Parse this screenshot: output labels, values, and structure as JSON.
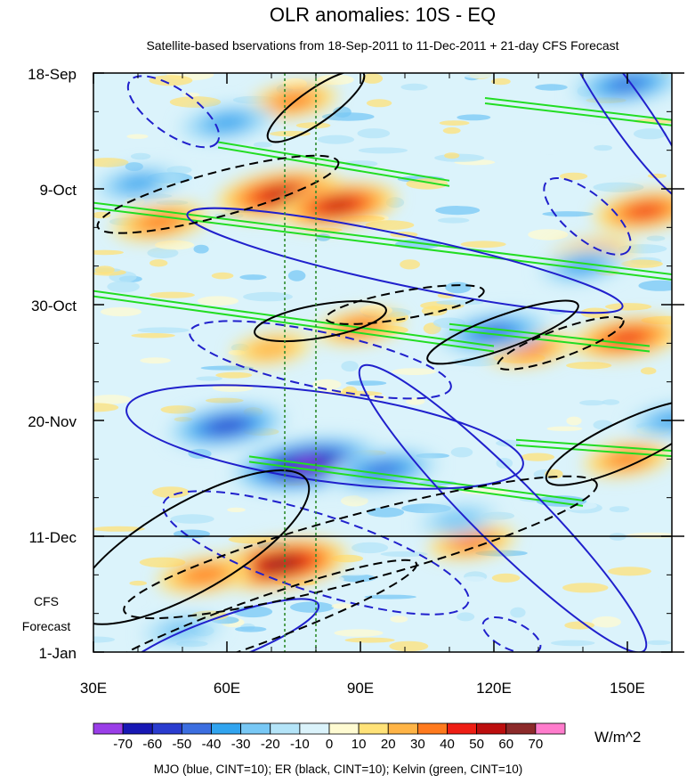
{
  "chart_data": {
    "type": "heatmap",
    "title": "OLR anomalies: 10S - EQ",
    "subtitle": "Satellite-based bservations from 18-Sep-2011 to 11-Dec-2011 + 21-day CFS Forecast",
    "x_axis": {
      "range": [
        30,
        160
      ],
      "ticks": [
        {
          "value": 30,
          "label": "30E"
        },
        {
          "value": 60,
          "label": "60E"
        },
        {
          "value": 90,
          "label": "90E"
        },
        {
          "value": 120,
          "label": "120E"
        },
        {
          "value": 150,
          "label": "150E"
        }
      ]
    },
    "y_axis": {
      "range": [
        "2011-09-18",
        "2012-01-01"
      ],
      "ticks": [
        {
          "date": "2011-09-18",
          "label": "18-Sep"
        },
        {
          "date": "2011-10-09",
          "label": "9-Oct"
        },
        {
          "date": "2011-10-30",
          "label": "30-Oct"
        },
        {
          "date": "2011-11-20",
          "label": "20-Nov"
        },
        {
          "date": "2011-12-11",
          "label": "11-Dec"
        },
        {
          "date": "2012-01-01",
          "label": "1-Jan"
        }
      ],
      "forecast_label": [
        "CFS",
        "Forecast"
      ]
    },
    "observation_end": "2011-12-11",
    "colorbar": {
      "unit": "W/m^2",
      "labels": [
        "-70",
        "-60",
        "-50",
        "-40",
        "-30",
        "-20",
        "-10",
        "0",
        "10",
        "20",
        "30",
        "40",
        "50",
        "60",
        "70"
      ],
      "colors": [
        "#9a3ee8",
        "#1818b4",
        "#2a3ccf",
        "#3c6ee0",
        "#31a4ef",
        "#78c8f5",
        "#b4e4f8",
        "#dbf3fb",
        "#fffbd2",
        "#ffe278",
        "#ffb446",
        "#ff7a1e",
        "#ee1e14",
        "#bc0e0e",
        "#8c2a2a",
        "#ff7ccc"
      ]
    },
    "footnote": "MJO (blue, CINT=10); ER (black, CINT=10); Kelvin (green, CINT=10)",
    "reference_lines_lon": [
      73,
      80
    ],
    "anomaly_blobs": [
      {
        "lon": 75,
        "date": "2011-09-23",
        "value": 30
      },
      {
        "lon": 72,
        "date": "2011-10-10",
        "value": 55
      },
      {
        "lon": 85,
        "date": "2011-10-12",
        "value": 50
      },
      {
        "lon": 45,
        "date": "2011-10-15",
        "value": 35
      },
      {
        "lon": 154,
        "date": "2011-10-13",
        "value": 40
      },
      {
        "lon": 142,
        "date": "2011-10-21",
        "value": 30
      },
      {
        "lon": 90,
        "date": "2011-11-03",
        "value": 30
      },
      {
        "lon": 70,
        "date": "2011-11-07",
        "value": 25
      },
      {
        "lon": 128,
        "date": "2011-11-07",
        "value": 30
      },
      {
        "lon": 150,
        "date": "2011-11-05",
        "value": 45
      },
      {
        "lon": 150,
        "date": "2011-11-27",
        "value": 30
      },
      {
        "lon": 72,
        "date": "2011-12-16",
        "value": 60
      },
      {
        "lon": 55,
        "date": "2011-12-18",
        "value": 35
      },
      {
        "lon": 115,
        "date": "2011-12-12",
        "value": 30
      },
      {
        "lon": 60,
        "date": "2011-09-27",
        "value": -35
      },
      {
        "lon": 40,
        "date": "2011-10-08",
        "value": -30
      },
      {
        "lon": 60,
        "date": "2011-11-21",
        "value": -50
      },
      {
        "lon": 78,
        "date": "2011-11-28",
        "value": -70
      },
      {
        "lon": 95,
        "date": "2011-11-29",
        "value": -45
      },
      {
        "lon": 120,
        "date": "2011-11-04",
        "value": -45
      },
      {
        "lon": 140,
        "date": "2011-10-23",
        "value": -30
      },
      {
        "lon": 150,
        "date": "2011-09-20",
        "value": -45
      },
      {
        "lon": 160,
        "date": "2011-11-20",
        "value": -30
      },
      {
        "lon": 112,
        "date": "2011-12-08",
        "value": -25
      },
      {
        "lon": 50,
        "date": "2011-12-28",
        "value": -25
      }
    ],
    "mjo_contours": [
      {
        "sign": "neg",
        "lon": 48,
        "date": "2011-09-25",
        "rlon": 12,
        "rdays": 4,
        "angle": 35
      },
      {
        "sign": "pos",
        "lon": 100,
        "date": "2011-10-22",
        "rlon": 50,
        "rdays": 4.5,
        "angle": 12
      },
      {
        "sign": "pos",
        "lon": 150,
        "date": "2011-09-25",
        "rlon": 25,
        "rdays": 3.5,
        "angle": 55
      },
      {
        "sign": "neg",
        "lon": 141,
        "date": "2011-10-14",
        "rlon": 12,
        "rdays": 4,
        "angle": 40
      },
      {
        "sign": "neg",
        "lon": 81,
        "date": "2011-11-09",
        "rlon": 30,
        "rdays": 5,
        "angle": 12
      },
      {
        "sign": "pos",
        "lon": 82,
        "date": "2011-11-23",
        "rlon": 45,
        "rdays": 8,
        "angle": 8
      },
      {
        "sign": "pos",
        "lon": 122,
        "date": "2011-12-06",
        "rlon": 45,
        "rdays": 6,
        "angle": 45
      },
      {
        "sign": "neg",
        "lon": 80,
        "date": "2011-12-14",
        "rlon": 36,
        "rdays": 7,
        "angle": 18
      },
      {
        "sign": "pos",
        "lon": 58,
        "date": "2011-12-30",
        "rlon": 24,
        "rdays": 4,
        "angle": -20
      },
      {
        "sign": "neg",
        "lon": 124,
        "date": "2011-12-29",
        "rlon": 7,
        "rdays": 2.5,
        "angle": 25
      }
    ],
    "er_contours": [
      {
        "sign": "pos",
        "lon": 80,
        "date": "2011-09-24",
        "rlon": 13,
        "rdays": 3,
        "angle": -35
      },
      {
        "sign": "neg",
        "lon": 58,
        "date": "2011-10-10",
        "rlon": 28,
        "rdays": 4,
        "angle": -15
      },
      {
        "sign": "neg",
        "lon": 100,
        "date": "2011-10-30",
        "rlon": 18,
        "rdays": 2.5,
        "angle": -10
      },
      {
        "sign": "pos",
        "lon": 81,
        "date": "2011-11-02",
        "rlon": 15,
        "rdays": 3,
        "angle": -10
      },
      {
        "sign": "pos",
        "lon": 122,
        "date": "2011-11-04",
        "rlon": 18,
        "rdays": 3,
        "angle": -20
      },
      {
        "sign": "neg",
        "lon": 135,
        "date": "2011-11-06",
        "rlon": 15,
        "rdays": 2.5,
        "angle": -20
      },
      {
        "sign": "neg",
        "lon": 90,
        "date": "2011-12-13",
        "rlon": 55,
        "rdays": 6,
        "angle": -15
      },
      {
        "sign": "pos",
        "lon": 52,
        "date": "2011-12-13",
        "rlon": 30,
        "rdays": 8,
        "angle": -30
      },
      {
        "sign": "neg",
        "lon": 65,
        "date": "2011-12-27",
        "rlon": 40,
        "rdays": 4,
        "angle": -20
      },
      {
        "sign": "pos",
        "lon": 150,
        "date": "2011-11-24",
        "rlon": 20,
        "rdays": 4,
        "angle": -25
      }
    ],
    "kelvin_bands": [
      {
        "lon1": 30,
        "date1": "2011-10-12",
        "lon2": 160,
        "date2": "2011-10-25"
      },
      {
        "lon1": 30,
        "date1": "2011-10-28",
        "lon2": 120,
        "date2": "2011-11-07"
      },
      {
        "lon1": 58,
        "date1": "2011-10-01",
        "lon2": 110,
        "date2": "2011-10-08"
      },
      {
        "lon1": 118,
        "date1": "2011-09-23",
        "lon2": 160,
        "date2": "2011-09-27"
      },
      {
        "lon1": 110,
        "date1": "2011-11-03",
        "lon2": 155,
        "date2": "2011-11-07"
      },
      {
        "lon1": 65,
        "date1": "2011-11-27",
        "lon2": 140,
        "date2": "2011-12-05"
      },
      {
        "lon1": 125,
        "date1": "2011-11-24",
        "lon2": 160,
        "date2": "2011-11-26"
      }
    ]
  }
}
